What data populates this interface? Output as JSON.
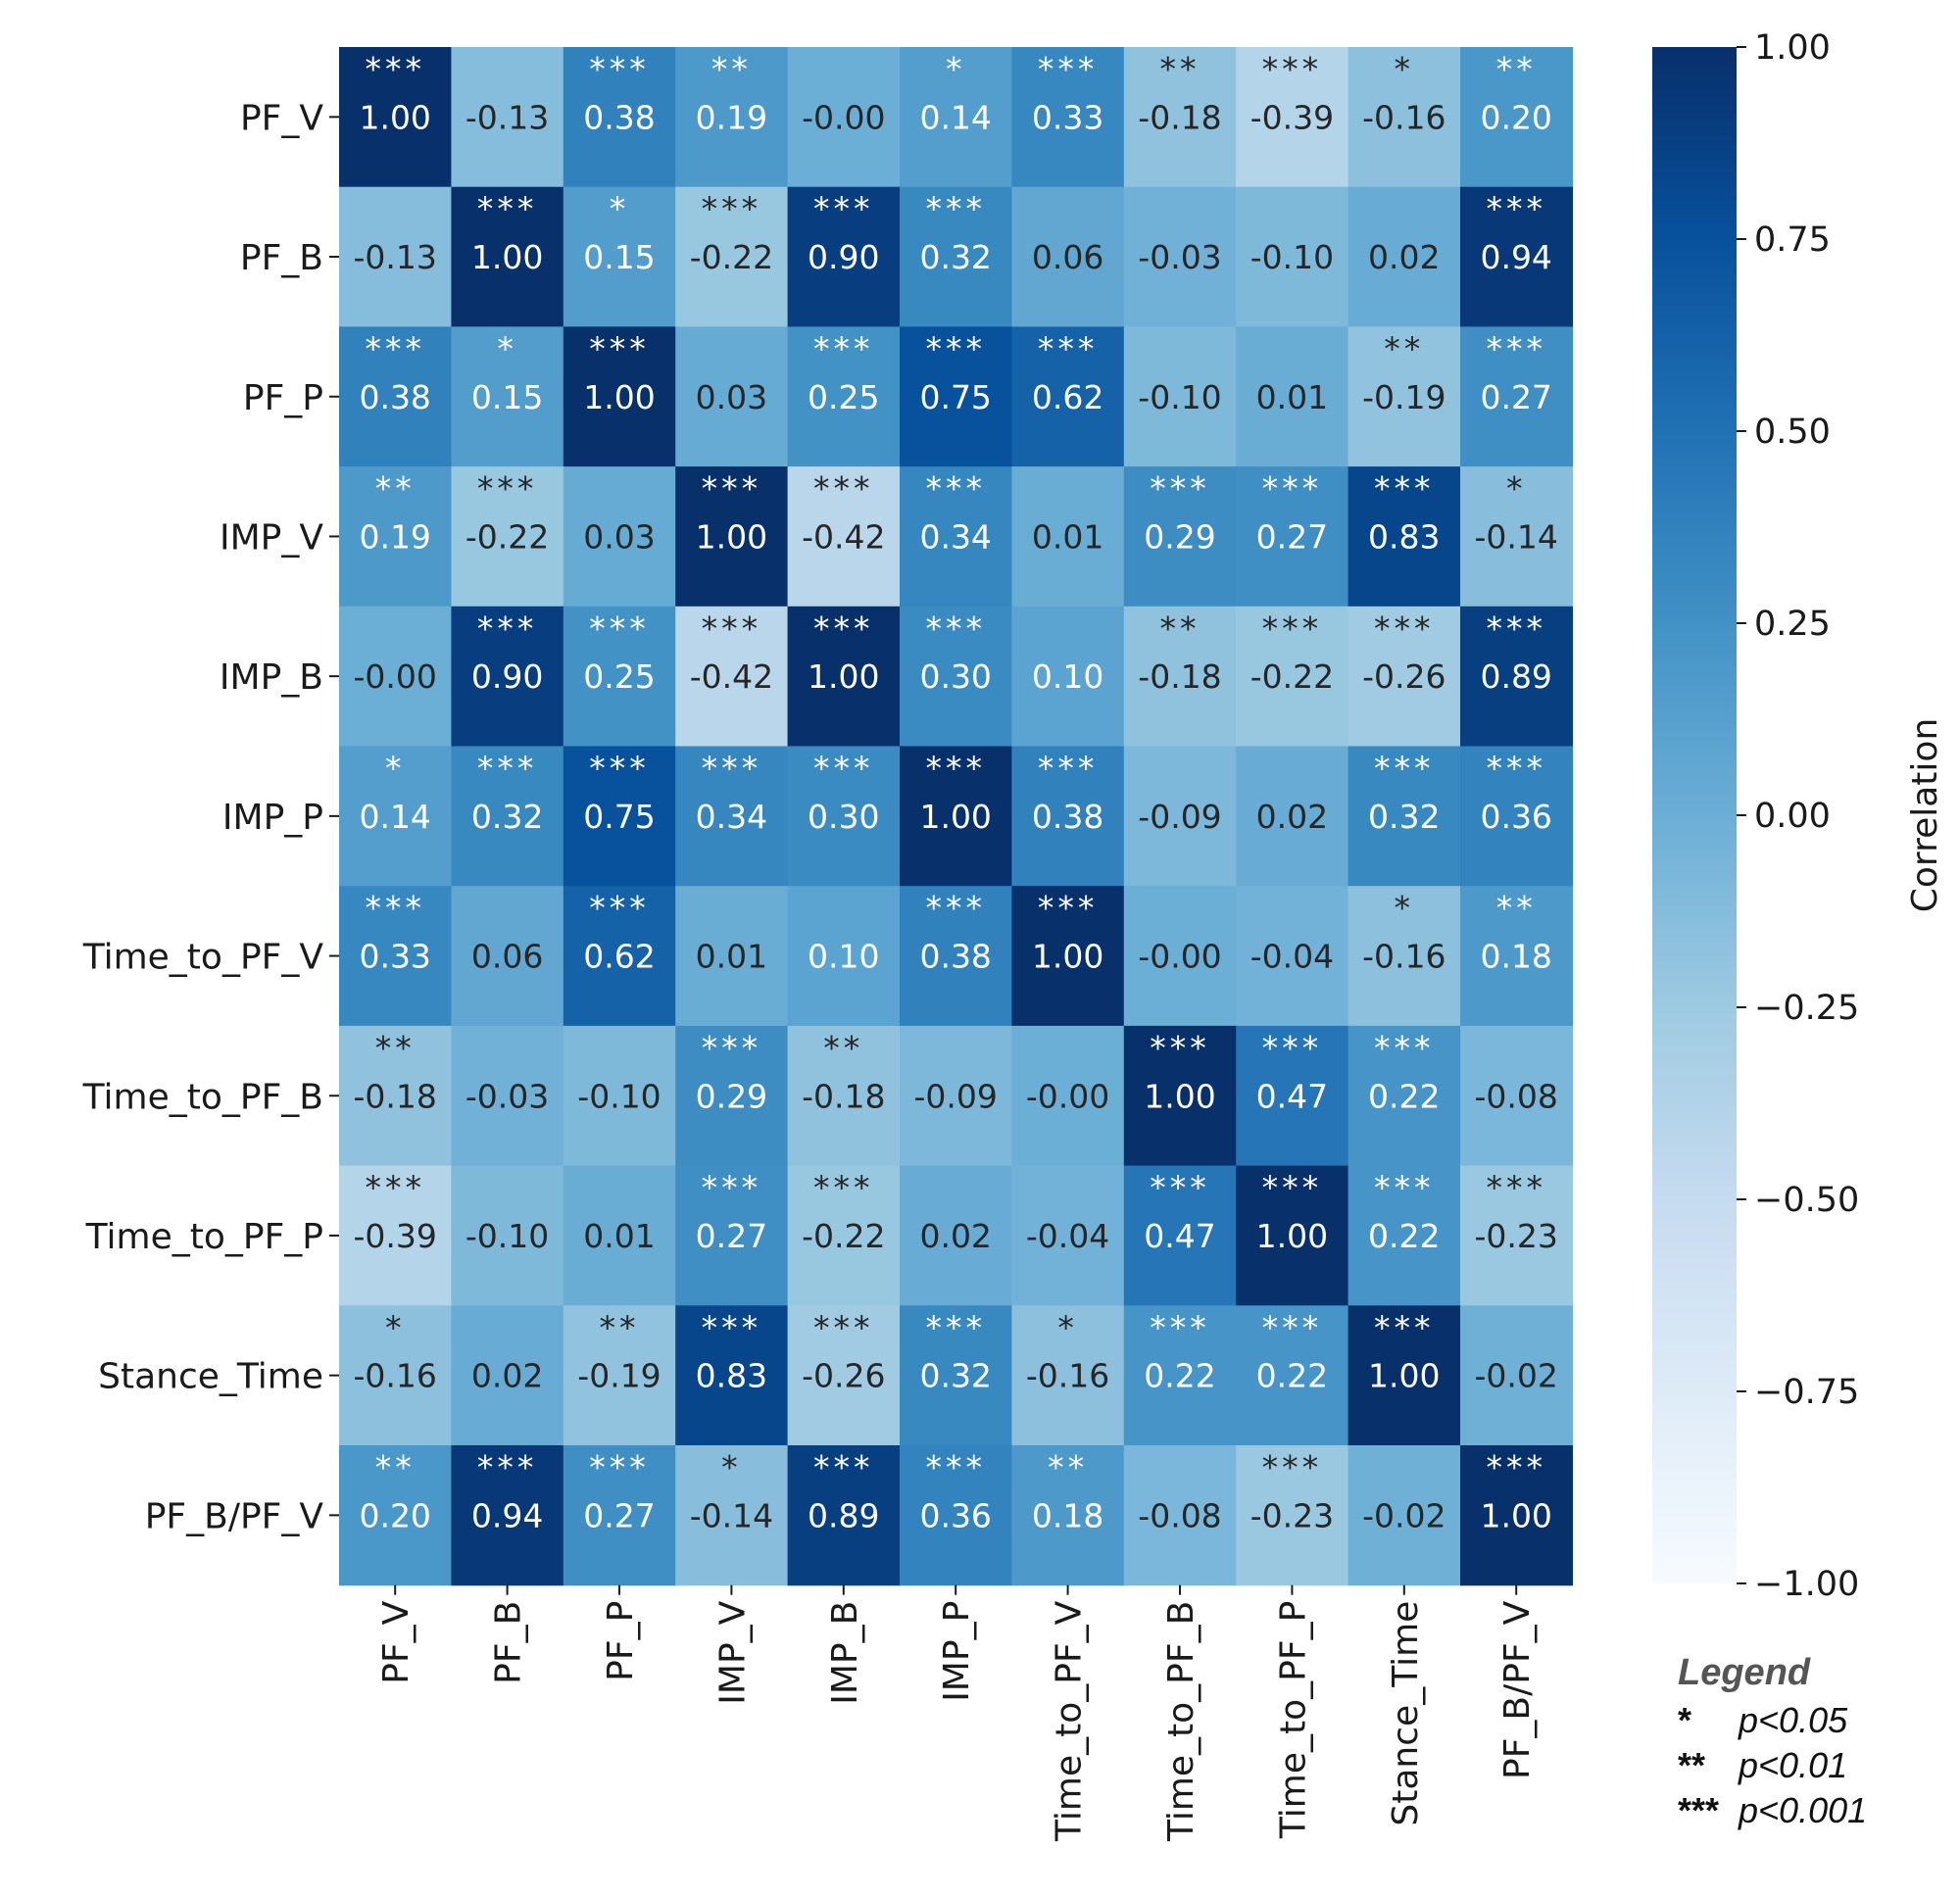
{
  "chart_data": {
    "type": "heatmap",
    "row_labels": [
      "PF_V",
      "PF_B",
      "PF_P",
      "IMP_V",
      "IMP_B",
      "IMP_P",
      "Time_to_PF_V",
      "Time_to_PF_B",
      "Time_to_PF_P",
      "Stance_Time",
      "PF_B/PF_V"
    ],
    "col_labels": [
      "PF_V",
      "PF_B",
      "PF_P",
      "IMP_V",
      "IMP_B",
      "IMP_P",
      "Time_to_PF_V",
      "Time_to_PF_B",
      "Time_to_PF_P",
      "Stance_Time",
      "PF_B/PF_V"
    ],
    "values": [
      [
        1.0,
        -0.13,
        0.38,
        0.19,
        -0.0,
        0.14,
        0.33,
        -0.18,
        -0.39,
        -0.16,
        0.2
      ],
      [
        -0.13,
        1.0,
        0.15,
        -0.22,
        0.9,
        0.32,
        0.06,
        -0.03,
        -0.1,
        0.02,
        0.94
      ],
      [
        0.38,
        0.15,
        1.0,
        0.03,
        0.25,
        0.75,
        0.62,
        -0.1,
        0.01,
        -0.19,
        0.27
      ],
      [
        0.19,
        -0.22,
        0.03,
        1.0,
        -0.42,
        0.34,
        0.01,
        0.29,
        0.27,
        0.83,
        -0.14
      ],
      [
        -0.0,
        0.9,
        0.25,
        -0.42,
        1.0,
        0.3,
        0.1,
        -0.18,
        -0.22,
        -0.26,
        0.89
      ],
      [
        0.14,
        0.32,
        0.75,
        0.34,
        0.3,
        1.0,
        0.38,
        -0.09,
        0.02,
        0.32,
        0.36
      ],
      [
        0.33,
        0.06,
        0.62,
        0.01,
        0.1,
        0.38,
        1.0,
        -0.0,
        -0.04,
        -0.16,
        0.18
      ],
      [
        -0.18,
        -0.03,
        -0.1,
        0.29,
        -0.18,
        -0.09,
        -0.0,
        1.0,
        0.47,
        0.22,
        -0.08
      ],
      [
        -0.39,
        -0.1,
        0.01,
        0.27,
        -0.22,
        0.02,
        -0.04,
        0.47,
        1.0,
        0.22,
        -0.23
      ],
      [
        -0.16,
        0.02,
        -0.19,
        0.83,
        -0.26,
        0.32,
        -0.16,
        0.22,
        0.22,
        1.0,
        -0.02
      ],
      [
        0.2,
        0.94,
        0.27,
        -0.14,
        0.89,
        0.36,
        0.18,
        -0.08,
        -0.23,
        -0.02,
        1.0
      ]
    ],
    "value_labels": [
      [
        "1.00",
        "-0.13",
        "0.38",
        "0.19",
        "-0.00",
        "0.14",
        "0.33",
        "-0.18",
        "-0.39",
        "-0.16",
        "0.20"
      ],
      [
        "-0.13",
        "1.00",
        "0.15",
        "-0.22",
        "0.90",
        "0.32",
        "0.06",
        "-0.03",
        "-0.10",
        "0.02",
        "0.94"
      ],
      [
        "0.38",
        "0.15",
        "1.00",
        "0.03",
        "0.25",
        "0.75",
        "0.62",
        "-0.10",
        "0.01",
        "-0.19",
        "0.27"
      ],
      [
        "0.19",
        "-0.22",
        "0.03",
        "1.00",
        "-0.42",
        "0.34",
        "0.01",
        "0.29",
        "0.27",
        "0.83",
        "-0.14"
      ],
      [
        "-0.00",
        "0.90",
        "0.25",
        "-0.42",
        "1.00",
        "0.30",
        "0.10",
        "-0.18",
        "-0.22",
        "-0.26",
        "0.89"
      ],
      [
        "0.14",
        "0.32",
        "0.75",
        "0.34",
        "0.30",
        "1.00",
        "0.38",
        "-0.09",
        "0.02",
        "0.32",
        "0.36"
      ],
      [
        "0.33",
        "0.06",
        "0.62",
        "0.01",
        "0.10",
        "0.38",
        "1.00",
        "-0.00",
        "-0.04",
        "-0.16",
        "0.18"
      ],
      [
        "-0.18",
        "-0.03",
        "-0.10",
        "0.29",
        "-0.18",
        "-0.09",
        "-0.00",
        "1.00",
        "0.47",
        "0.22",
        "-0.08"
      ],
      [
        "-0.39",
        "-0.10",
        "0.01",
        "0.27",
        "-0.22",
        "0.02",
        "-0.04",
        "0.47",
        "1.00",
        "0.22",
        "-0.23"
      ],
      [
        "-0.16",
        "0.02",
        "-0.19",
        "0.83",
        "-0.26",
        "0.32",
        "-0.16",
        "0.22",
        "0.22",
        "1.00",
        "-0.02"
      ],
      [
        "0.20",
        "0.94",
        "0.27",
        "-0.14",
        "0.89",
        "0.36",
        "0.18",
        "-0.08",
        "-0.23",
        "-0.02",
        "1.00"
      ]
    ],
    "significance": [
      [
        "***",
        "",
        "***",
        "**",
        "",
        "*",
        "***",
        "**",
        "***",
        "*",
        "**"
      ],
      [
        "",
        "***",
        "*",
        "***",
        "***",
        "***",
        "",
        "",
        "",
        "",
        "***"
      ],
      [
        "***",
        "*",
        "***",
        "",
        "***",
        "***",
        "***",
        "",
        "",
        "**",
        "***"
      ],
      [
        "**",
        "***",
        "",
        "***",
        "***",
        "***",
        "",
        "***",
        "***",
        "***",
        "*"
      ],
      [
        "",
        "***",
        "***",
        "***",
        "***",
        "***",
        "",
        "**",
        "***",
        "***",
        "***"
      ],
      [
        "*",
        "***",
        "***",
        "***",
        "***",
        "***",
        "***",
        "",
        "",
        "***",
        "***"
      ],
      [
        "***",
        "",
        "***",
        "",
        "",
        "***",
        "***",
        "",
        "",
        "*",
        "**"
      ],
      [
        "**",
        "",
        "",
        "***",
        "**",
        "",
        "",
        "***",
        "***",
        "***",
        ""
      ],
      [
        "***",
        "",
        "",
        "***",
        "***",
        "",
        "",
        "***",
        "***",
        "***",
        "***"
      ],
      [
        "*",
        "",
        "**",
        "***",
        "***",
        "***",
        "*",
        "***",
        "***",
        "***",
        ""
      ],
      [
        "**",
        "***",
        "***",
        "*",
        "***",
        "***",
        "**",
        "",
        "***",
        "",
        "***"
      ]
    ],
    "colorbar": {
      "label": "Correlation",
      "range": [
        -1.0,
        1.0
      ],
      "ticks": [
        "1.00",
        "0.75",
        "0.50",
        "0.25",
        "0.00",
        "−0.25",
        "−0.50",
        "−0.75",
        "−1.00"
      ],
      "tick_values": [
        1.0,
        0.75,
        0.5,
        0.25,
        0.0,
        -0.25,
        -0.5,
        -0.75,
        -1.0
      ],
      "colormap": "Blues",
      "colors": [
        "#f7fbff",
        "#deebf7",
        "#c6dbef",
        "#9ecae1",
        "#6baed6",
        "#4292c6",
        "#2171b5",
        "#08519c",
        "#08306b"
      ]
    },
    "legend": {
      "title": "Legend",
      "entries": [
        {
          "stars": "*",
          "text": "p<0.05"
        },
        {
          "stars": "**",
          "text": "p<0.01"
        },
        {
          "stars": "***",
          "text": "p<0.001"
        }
      ]
    }
  }
}
